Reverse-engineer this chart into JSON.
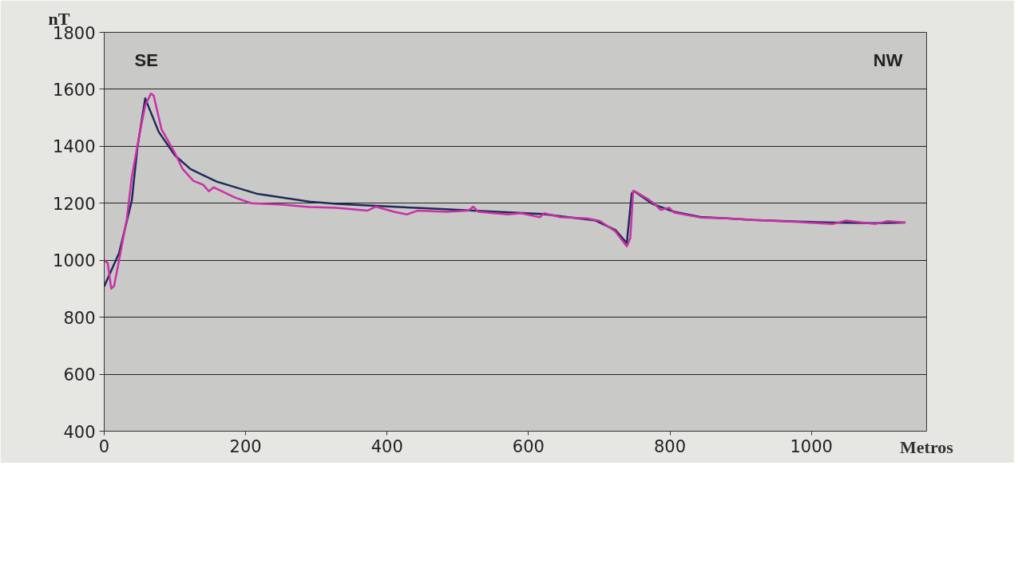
{
  "chart_data": {
    "type": "line",
    "xlabel": "Metros",
    "ylabel": "nT",
    "xlim": [
      0,
      1163
    ],
    "ylim": [
      400,
      1800
    ],
    "xticks": [
      0,
      200,
      400,
      600,
      800,
      1000
    ],
    "yticks": [
      400,
      600,
      800,
      1000,
      1200,
      1400,
      1600,
      1800
    ],
    "grid": "y",
    "marker": "none",
    "line_style": "solid",
    "annotations": [
      "SE",
      "NW"
    ],
    "series": [
      {
        "color": "#1f2a5a",
        "x": [
          0,
          21,
          39,
          47,
          58,
          77,
          100,
          122,
          159,
          215,
          290,
          328,
          448,
          522,
          619,
          694,
          723,
          739,
          746,
          749,
          776,
          806,
          843,
          881,
          918,
          981,
          1030,
          1090,
          1133
        ],
        "values": [
          908,
          1025,
          1209,
          1396,
          1568,
          1451,
          1368,
          1320,
          1276,
          1234,
          1206,
          1198,
          1183,
          1174,
          1162,
          1140,
          1106,
          1060,
          1234,
          1243,
          1197,
          1170,
          1152,
          1147,
          1141,
          1136,
          1132,
          1130,
          1132
        ]
      },
      {
        "color": "#cc2fa8",
        "x": [
          0,
          5,
          10,
          14,
          21,
          32,
          39,
          50,
          58,
          66,
          70,
          81,
          100,
          111,
          126,
          140,
          148,
          155,
          185,
          208,
          252,
          290,
          328,
          372,
          384,
          410,
          428,
          443,
          485,
          515,
          522,
          529,
          571,
          589,
          616,
          622,
          645,
          683,
          701,
          723,
          739,
          744,
          748,
          751,
          768,
          776,
          787,
          799,
          806,
          843,
          881,
          918,
          981,
          1030,
          1049,
          1090,
          1108,
          1133
        ],
        "values": [
          1000,
          990,
          900,
          910,
          1000,
          1145,
          1292,
          1443,
          1543,
          1585,
          1578,
          1460,
          1376,
          1320,
          1279,
          1265,
          1242,
          1256,
          1220,
          1200,
          1195,
          1187,
          1184,
          1174,
          1188,
          1170,
          1161,
          1174,
          1170,
          1174,
          1188,
          1170,
          1161,
          1165,
          1151,
          1165,
          1151,
          1147,
          1138,
          1101,
          1049,
          1078,
          1243,
          1241,
          1216,
          1202,
          1177,
          1184,
          1167,
          1150,
          1147,
          1141,
          1134,
          1127,
          1139,
          1127,
          1137,
          1132
        ]
      }
    ]
  }
}
